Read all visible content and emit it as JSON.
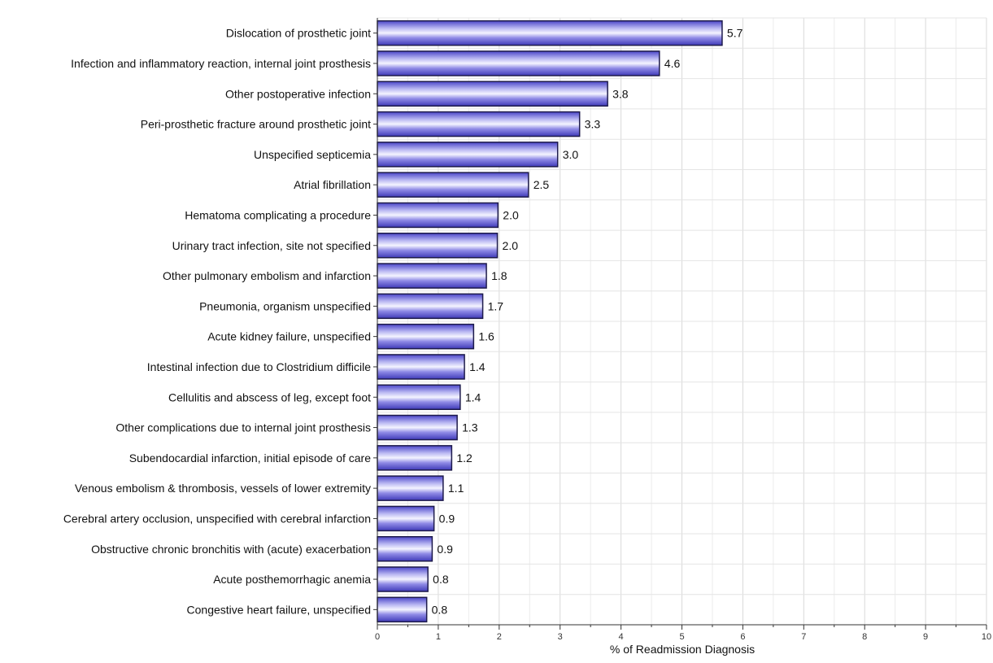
{
  "chart_data": {
    "type": "bar",
    "orientation": "horizontal",
    "title": "",
    "xlabel": "% of Readmission Diagnosis",
    "ylabel": "",
    "xlim": [
      0,
      10
    ],
    "xticks": [
      "0",
      "1",
      "2",
      "3",
      "4",
      "5",
      "6",
      "7",
      "8",
      "9",
      "10"
    ],
    "grid": true,
    "bar_color": "#5a55d6",
    "categories": [
      "Dislocation of prosthetic joint",
      "Infection and inflammatory reaction, internal joint prosthesis",
      "Other postoperative infection",
      "Peri-prosthetic fracture around prosthetic joint",
      "Unspecified septicemia",
      "Atrial fibrillation",
      "Hematoma complicating a procedure",
      "Urinary tract infection, site not specified",
      "Other pulmonary embolism and infarction",
      "Pneumonia, organism unspecified",
      "Acute kidney failure, unspecified",
      "Intestinal infection due to Clostridium difficile",
      "Cellulitis and abscess of leg, except foot",
      "Other complications due to internal joint prosthesis",
      "Subendocardial infarction, initial episode of care",
      "Venous embolism & thrombosis, vessels of lower extremity",
      "Cerebral artery occlusion, unspecified with cerebral infarction",
      "Obstructive chronic bronchitis with (acute) exacerbation",
      "Acute posthemorrhagic anemia",
      "Congestive heart failure, unspecified"
    ],
    "values": [
      5.66,
      4.63,
      3.78,
      3.32,
      2.96,
      2.48,
      1.98,
      1.97,
      1.79,
      1.73,
      1.58,
      1.43,
      1.36,
      1.31,
      1.22,
      1.08,
      0.93,
      0.9,
      0.83,
      0.81
    ],
    "value_labels": [
      "5.7",
      "4.6",
      "3.8",
      "3.3",
      "3.0",
      "2.5",
      "2.0",
      "2.0",
      "1.8",
      "1.7",
      "1.6",
      "1.4",
      "1.4",
      "1.3",
      "1.2",
      "1.1",
      "0.9",
      "0.9",
      "0.8",
      "0.8"
    ]
  }
}
